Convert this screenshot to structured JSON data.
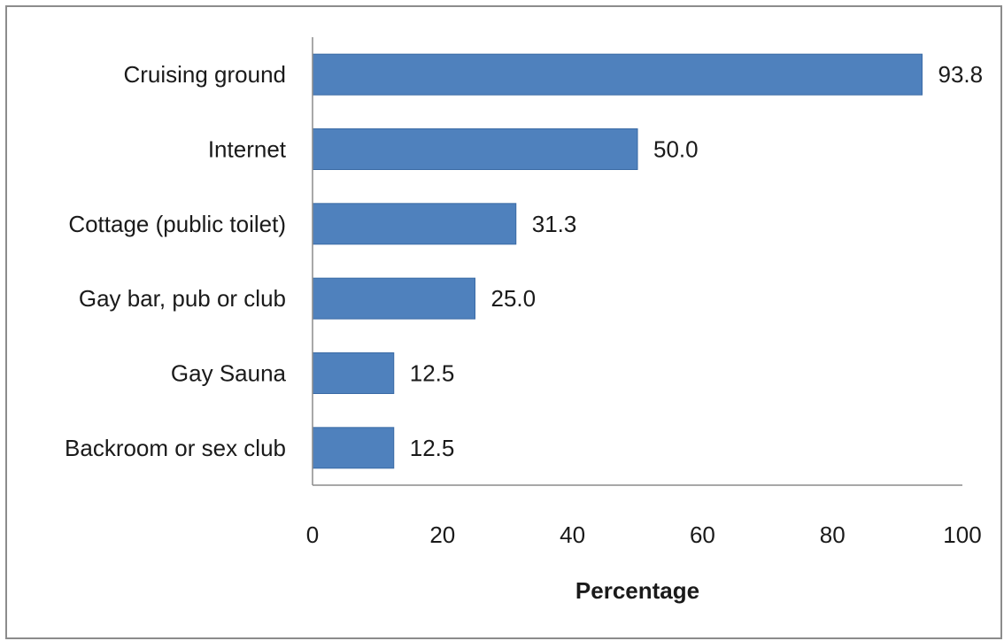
{
  "chart_data": {
    "type": "bar",
    "orientation": "horizontal",
    "categories": [
      "Cruising ground",
      "Internet",
      "Cottage (public toilet)",
      "Gay bar, pub or club",
      "Gay Sauna",
      "Backroom or sex club"
    ],
    "values": [
      93.8,
      50.0,
      31.3,
      25.0,
      12.5,
      12.5
    ],
    "value_labels": [
      "93.8",
      "50.0",
      "31.3",
      "25.0",
      "12.5",
      "12.5"
    ],
    "xlabel": "Percentage",
    "ylabel": "",
    "xlim": [
      0,
      100
    ],
    "xticks": [
      0,
      20,
      40,
      60,
      80,
      100
    ],
    "xtick_labels": [
      "0",
      "20",
      "40",
      "60",
      "80",
      "100"
    ],
    "grid": false,
    "legend": "none",
    "bar_color": "#4f81bd",
    "bar_edge_color": "#3a6aa5"
  }
}
